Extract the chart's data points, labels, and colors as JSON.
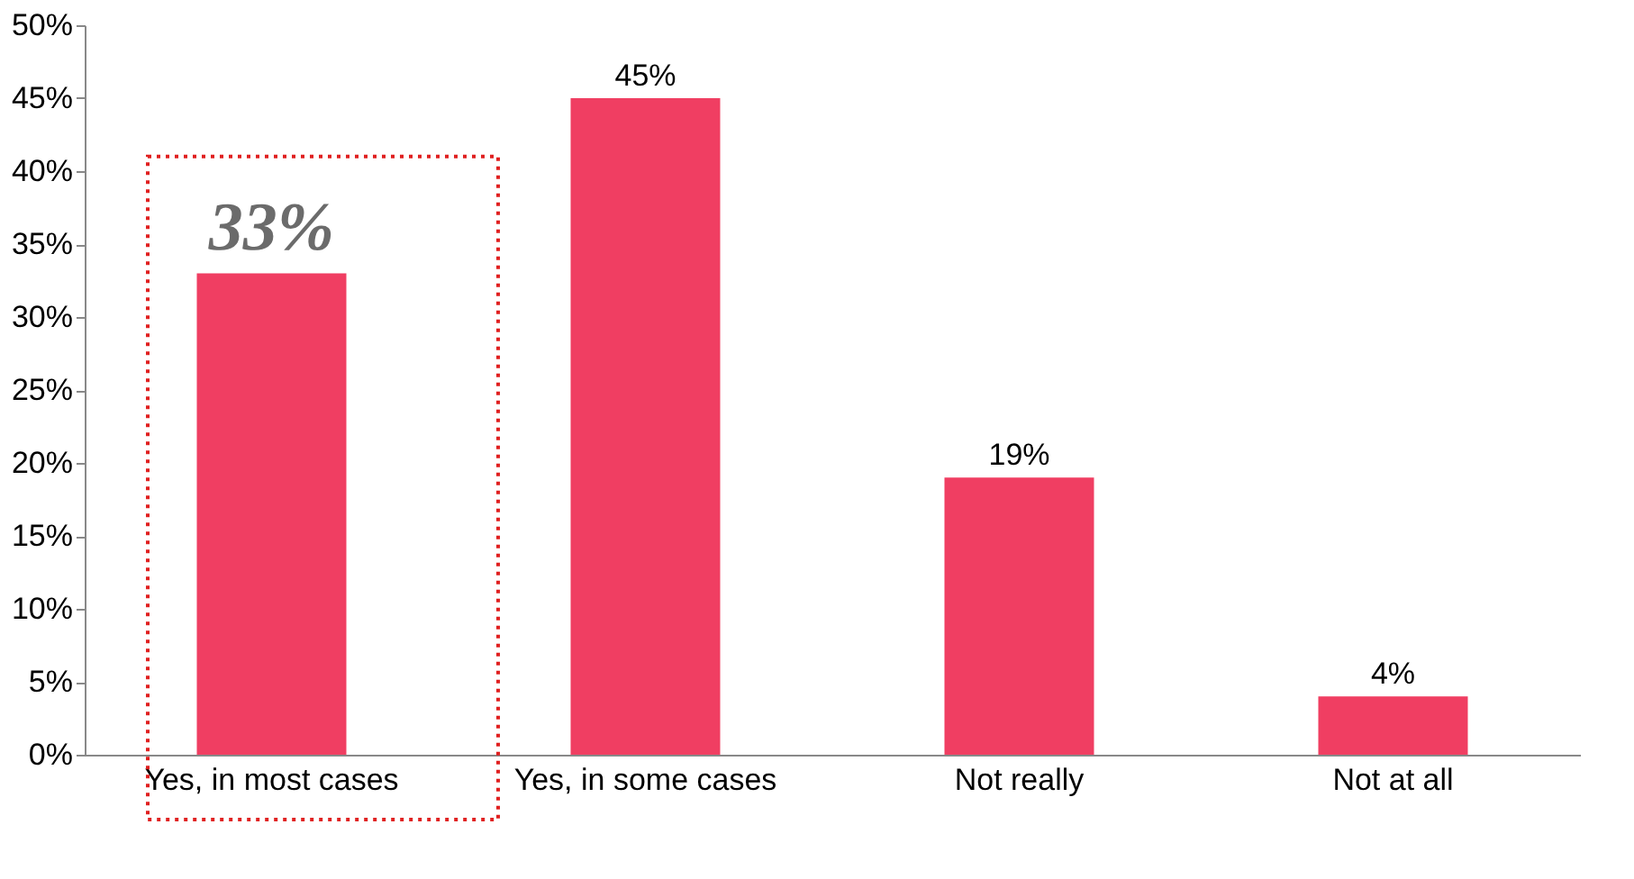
{
  "chart_data": {
    "type": "bar",
    "categories": [
      "Yes, in most cases",
      "Yes, in some cases",
      "Not really",
      "Not at all"
    ],
    "values": [
      33,
      45,
      19,
      4
    ],
    "color": "#f03e62",
    "value_labels": [
      "33%",
      "45%",
      "19%",
      "4%"
    ],
    "ylim": [
      0,
      50
    ],
    "yticks": [
      {
        "value": 0,
        "label": "0%"
      },
      {
        "value": 5,
        "label": "5%"
      },
      {
        "value": 10,
        "label": "10%"
      },
      {
        "value": 15,
        "label": "15%"
      },
      {
        "value": 20,
        "label": "20%"
      },
      {
        "value": 25,
        "label": "25%"
      },
      {
        "value": 30,
        "label": "30%"
      },
      {
        "value": 35,
        "label": "35%"
      },
      {
        "value": 40,
        "label": "40%"
      },
      {
        "value": 45,
        "label": "45%"
      },
      {
        "value": 50,
        "label": "50%"
      }
    ],
    "grid": false
  }
}
